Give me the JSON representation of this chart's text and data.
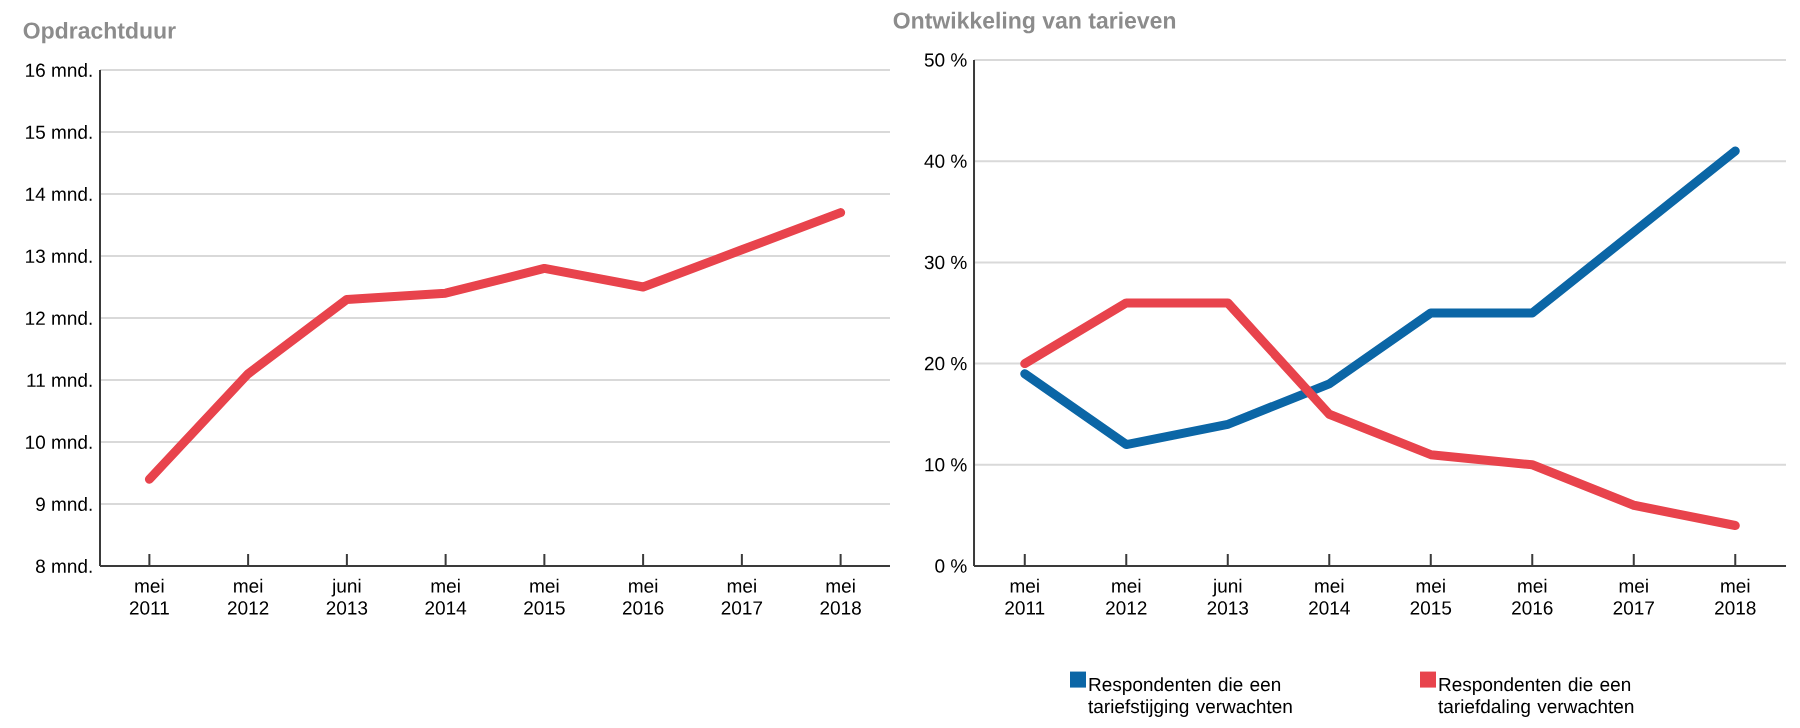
{
  "chart_data": [
    {
      "type": "line",
      "title": "Opdrachtduur",
      "categories": [
        "mei 2011",
        "mei 2012",
        "juni 2013",
        "mei 2014",
        "mei 2015",
        "mei 2016",
        "mei 2017",
        "mei 2018"
      ],
      "values": [
        9.4,
        11.1,
        12.3,
        12.4,
        12.8,
        12.5,
        13.1,
        13.7
      ],
      "color": "#e8434c",
      "ylim": [
        8,
        16
      ],
      "yticks": [
        {
          "value": 8,
          "label": "8 mnd."
        },
        {
          "value": 9,
          "label": "9 mnd."
        },
        {
          "value": 10,
          "label": "10 mnd."
        },
        {
          "value": 11,
          "label": "11 mnd."
        },
        {
          "value": 12,
          "label": "12 mnd."
        },
        {
          "value": 13,
          "label": "13 mnd."
        },
        {
          "value": 14,
          "label": "14 mnd."
        },
        {
          "value": 15,
          "label": "15 mnd."
        },
        {
          "value": 16,
          "label": "16 mnd."
        }
      ],
      "grid": "y"
    },
    {
      "type": "line",
      "title": "Ontwikkeling van tarieven",
      "categories": [
        "mei 2011",
        "mei 2012",
        "juni 2013",
        "mei 2014",
        "mei 2015",
        "mei 2016",
        "mei 2017",
        "mei 2018"
      ],
      "series": [
        {
          "name": "Respondenten die een tariefstijging verwachten",
          "color": "#0b66a6",
          "values": [
            19,
            12,
            14,
            18,
            25,
            25,
            33,
            41
          ]
        },
        {
          "name": "Respondenten die een tariefdaling verwachten",
          "color": "#e8434c",
          "values": [
            20,
            26,
            26,
            15,
            11,
            10,
            6,
            4
          ]
        }
      ],
      "ylim": [
        0,
        50
      ],
      "yticks": [
        {
          "value": 0,
          "label": "0 %"
        },
        {
          "value": 10,
          "label": "10 %"
        },
        {
          "value": 20,
          "label": "20 %"
        },
        {
          "value": 30,
          "label": "30 %"
        },
        {
          "value": 40,
          "label": "40 %"
        },
        {
          "value": 50,
          "label": "50 %"
        }
      ],
      "grid": "y",
      "legend": "bottom"
    }
  ]
}
